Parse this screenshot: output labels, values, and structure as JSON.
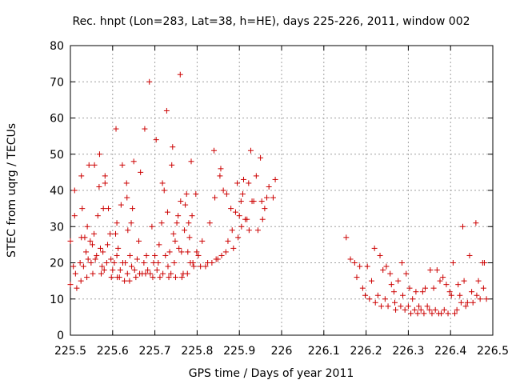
{
  "chart_data": {
    "type": "scatter",
    "title": "Rec. hnpt (Lon=283, Lat=38, h=HE), days 225-226, 2011, window 002",
    "xlabel": "GPS time / Days of year 2011",
    "ylabel": "STEC from uqrg / TECUs",
    "xlim": [
      225.5,
      226.5
    ],
    "ylim": [
      0,
      80
    ],
    "xticks": [
      "225.5",
      "225.6",
      "225.7",
      "225.8",
      "225.9",
      "226",
      "226.1",
      "226.2",
      "226.3",
      "226.4",
      "226.5"
    ],
    "yticks": [
      "0",
      "10",
      "20",
      "30",
      "40",
      "50",
      "60",
      "70",
      "80"
    ],
    "grid": true,
    "marker": "+",
    "color": "#cc0000",
    "series": [
      {
        "name": "STEC",
        "points": [
          [
            225.5,
            14
          ],
          [
            225.5,
            26
          ],
          [
            225.507,
            19
          ],
          [
            225.51,
            40
          ],
          [
            225.51,
            33
          ],
          [
            225.512,
            17
          ],
          [
            225.515,
            13
          ],
          [
            225.523,
            20
          ],
          [
            225.525,
            15
          ],
          [
            225.526,
            44
          ],
          [
            225.526,
            27
          ],
          [
            225.528,
            35
          ],
          [
            225.531,
            19
          ],
          [
            225.534,
            27
          ],
          [
            225.537,
            23
          ],
          [
            225.539,
            16
          ],
          [
            225.54,
            30
          ],
          [
            225.542,
            21
          ],
          [
            225.544,
            47
          ],
          [
            225.547,
            26
          ],
          [
            225.549,
            20
          ],
          [
            225.552,
            25
          ],
          [
            225.553,
            17
          ],
          [
            225.556,
            28
          ],
          [
            225.557,
            47
          ],
          [
            225.559,
            21
          ],
          [
            225.562,
            22
          ],
          [
            225.565,
            33
          ],
          [
            225.568,
            41
          ],
          [
            225.569,
            50
          ],
          [
            225.571,
            24
          ],
          [
            225.573,
            17
          ],
          [
            225.575,
            19
          ],
          [
            225.577,
            23
          ],
          [
            225.578,
            35
          ],
          [
            225.58,
            18
          ],
          [
            225.582,
            42
          ],
          [
            225.582,
            44
          ],
          [
            225.586,
            20
          ],
          [
            225.588,
            25
          ],
          [
            225.59,
            35
          ],
          [
            225.594,
            28
          ],
          [
            225.596,
            21
          ],
          [
            225.597,
            16
          ],
          [
            225.6,
            18
          ],
          [
            225.604,
            20
          ],
          [
            225.607,
            28
          ],
          [
            225.608,
            57
          ],
          [
            225.61,
            31
          ],
          [
            225.61,
            22
          ],
          [
            225.611,
            16
          ],
          [
            225.613,
            24
          ],
          [
            225.616,
            16
          ],
          [
            225.618,
            18
          ],
          [
            225.62,
            36
          ],
          [
            225.623,
            47
          ],
          [
            225.624,
            20
          ],
          [
            225.628,
            15
          ],
          [
            225.63,
            20
          ],
          [
            225.633,
            42
          ],
          [
            225.634,
            38
          ],
          [
            225.635,
            17
          ],
          [
            225.636,
            29
          ],
          [
            225.64,
            15
          ],
          [
            225.641,
            22
          ],
          [
            225.644,
            31
          ],
          [
            225.645,
            19
          ],
          [
            225.647,
            35
          ],
          [
            225.65,
            48
          ],
          [
            225.652,
            18
          ],
          [
            225.655,
            16
          ],
          [
            225.658,
            21
          ],
          [
            225.662,
            26
          ],
          [
            225.664,
            17
          ],
          [
            225.666,
            45
          ],
          [
            225.67,
            17
          ],
          [
            225.674,
            20
          ],
          [
            225.676,
            57
          ],
          [
            225.678,
            17
          ],
          [
            225.68,
            22
          ],
          [
            225.683,
            18
          ],
          [
            225.687,
            70
          ],
          [
            225.689,
            17
          ],
          [
            225.693,
            30
          ],
          [
            225.695,
            16
          ],
          [
            225.697,
            20
          ],
          [
            225.7,
            22
          ],
          [
            225.703,
            54
          ],
          [
            225.705,
            18
          ],
          [
            225.708,
            20
          ],
          [
            225.71,
            25
          ],
          [
            225.712,
            16
          ],
          [
            225.716,
            31
          ],
          [
            225.718,
            42
          ],
          [
            225.719,
            17
          ],
          [
            225.722,
            40
          ],
          [
            225.725,
            22
          ],
          [
            225.728,
            62
          ],
          [
            225.73,
            34
          ],
          [
            225.731,
            19
          ],
          [
            225.733,
            16
          ],
          [
            225.735,
            23
          ],
          [
            225.738,
            17
          ],
          [
            225.74,
            47
          ],
          [
            225.742,
            52
          ],
          [
            225.744,
            28
          ],
          [
            225.746,
            20
          ],
          [
            225.748,
            26
          ],
          [
            225.749,
            16
          ],
          [
            225.752,
            31
          ],
          [
            225.755,
            33
          ],
          [
            225.757,
            24
          ],
          [
            225.76,
            72
          ],
          [
            225.761,
            37
          ],
          [
            225.763,
            23
          ],
          [
            225.764,
            16
          ],
          [
            225.767,
            17
          ],
          [
            225.77,
            29
          ],
          [
            225.772,
            36
          ],
          [
            225.775,
            39
          ],
          [
            225.777,
            17
          ],
          [
            225.778,
            23
          ],
          [
            225.78,
            31
          ],
          [
            225.782,
            27
          ],
          [
            225.784,
            20
          ],
          [
            225.786,
            48
          ],
          [
            225.788,
            33
          ],
          [
            225.79,
            20
          ],
          [
            225.792,
            19
          ],
          [
            225.797,
            39
          ],
          [
            225.799,
            23
          ],
          [
            225.803,
            22
          ],
          [
            225.808,
            19
          ],
          [
            225.812,
            26
          ],
          [
            225.82,
            19
          ],
          [
            225.825,
            20
          ],
          [
            225.83,
            31
          ],
          [
            225.835,
            20
          ],
          [
            225.84,
            51
          ],
          [
            225.842,
            38
          ],
          [
            225.845,
            21
          ],
          [
            225.849,
            21
          ],
          [
            225.854,
            44
          ],
          [
            225.856,
            46
          ],
          [
            225.858,
            22
          ],
          [
            225.862,
            40
          ],
          [
            225.868,
            23
          ],
          [
            225.87,
            39
          ],
          [
            225.873,
            26
          ],
          [
            225.88,
            35
          ],
          [
            225.883,
            29
          ],
          [
            225.886,
            24
          ],
          [
            225.891,
            34
          ],
          [
            225.895,
            42
          ],
          [
            225.897,
            27
          ],
          [
            225.9,
            33
          ],
          [
            225.904,
            37
          ],
          [
            225.905,
            30
          ],
          [
            225.908,
            39
          ],
          [
            225.91,
            43
          ],
          [
            225.914,
            32
          ],
          [
            225.918,
            32
          ],
          [
            225.922,
            42
          ],
          [
            225.923,
            29
          ],
          [
            225.927,
            51
          ],
          [
            225.93,
            37
          ],
          [
            225.934,
            37
          ],
          [
            225.94,
            44
          ],
          [
            225.944,
            29
          ],
          [
            225.95,
            49
          ],
          [
            225.953,
            37
          ],
          [
            225.955,
            32
          ],
          [
            225.96,
            35
          ],
          [
            225.965,
            38
          ],
          [
            225.97,
            41
          ],
          [
            225.98,
            38
          ],
          [
            225.985,
            43
          ],
          [
            226.153,
            27
          ],
          [
            226.163,
            21
          ],
          [
            226.173,
            20
          ],
          [
            226.178,
            16
          ],
          [
            226.185,
            19
          ],
          [
            226.192,
            13
          ],
          [
            226.198,
            11
          ],
          [
            226.203,
            19
          ],
          [
            226.208,
            10
          ],
          [
            226.213,
            15
          ],
          [
            226.22,
            24
          ],
          [
            226.222,
            9
          ],
          [
            226.228,
            11
          ],
          [
            226.233,
            22
          ],
          [
            226.236,
            8
          ],
          [
            226.24,
            18
          ],
          [
            226.245,
            10
          ],
          [
            226.248,
            19
          ],
          [
            226.252,
            8
          ],
          [
            226.257,
            17
          ],
          [
            226.26,
            14
          ],
          [
            226.266,
            12
          ],
          [
            226.268,
            9
          ],
          [
            226.27,
            7
          ],
          [
            226.276,
            15
          ],
          [
            226.282,
            8
          ],
          [
            226.285,
            20
          ],
          [
            226.287,
            11
          ],
          [
            226.292,
            7
          ],
          [
            226.295,
            17
          ],
          [
            226.3,
            8
          ],
          [
            226.303,
            13
          ],
          [
            226.306,
            6
          ],
          [
            226.31,
            10
          ],
          [
            226.315,
            7
          ],
          [
            226.318,
            12
          ],
          [
            226.322,
            6
          ],
          [
            226.325,
            8
          ],
          [
            226.33,
            7
          ],
          [
            226.334,
            12
          ],
          [
            226.337,
            6
          ],
          [
            226.34,
            13
          ],
          [
            226.345,
            8
          ],
          [
            226.35,
            7
          ],
          [
            226.352,
            18
          ],
          [
            226.356,
            6
          ],
          [
            226.36,
            13
          ],
          [
            226.364,
            7
          ],
          [
            226.368,
            18
          ],
          [
            226.372,
            6
          ],
          [
            226.375,
            15
          ],
          [
            226.378,
            6
          ],
          [
            226.382,
            16
          ],
          [
            226.385,
            7
          ],
          [
            226.39,
            14
          ],
          [
            226.394,
            6
          ],
          [
            226.398,
            12
          ],
          [
            226.402,
            11
          ],
          [
            226.406,
            20
          ],
          [
            226.41,
            6
          ],
          [
            226.415,
            7
          ],
          [
            226.418,
            14
          ],
          [
            226.422,
            11
          ],
          [
            226.425,
            9
          ],
          [
            226.429,
            30
          ],
          [
            226.432,
            15
          ],
          [
            226.436,
            8
          ],
          [
            226.44,
            9
          ],
          [
            226.445,
            22
          ],
          [
            226.45,
            12
          ],
          [
            226.453,
            9
          ],
          [
            226.46,
            31
          ],
          [
            226.462,
            11
          ],
          [
            226.466,
            15
          ],
          [
            226.47,
            10
          ],
          [
            226.476,
            20
          ],
          [
            226.478,
            13
          ],
          [
            226.48,
            20
          ],
          [
            226.485,
            10
          ]
        ]
      }
    ]
  }
}
